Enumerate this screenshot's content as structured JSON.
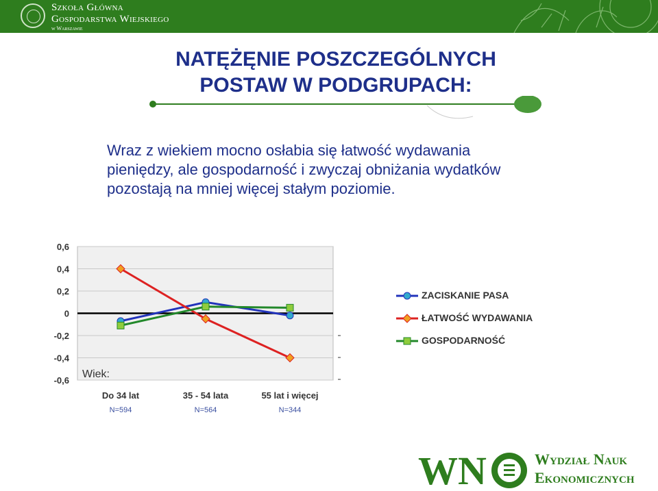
{
  "header": {
    "university_line1": "Szkoła Główna",
    "university_line2": "Gospodarstwa Wiejskiego",
    "university_line3": "w Warszawie",
    "brand_color": "#2e7d1e"
  },
  "slide": {
    "title_line1": "NATĘŻĘNIE POSZCZEGÓLNYCH",
    "title_line2": "POSTAW W PODGRUPACH:",
    "paragraph_line1": "Wraz z wiekiem mocno osłabia się łatwość wydawania",
    "paragraph_line2": "pieniędzy, ale gospodarność i zwyczaj obniżania wydatków",
    "paragraph_line3": "pozostają na mniej więcej stałym poziomie.",
    "text_color": "#1e2f8a"
  },
  "chart_data": {
    "type": "line",
    "categories": [
      "Do 34 lat",
      "35 - 54 lata",
      "55 lat i więcej"
    ],
    "category_n": [
      "N=594",
      "N=564",
      "N=344"
    ],
    "x_title": "Wiek:",
    "ylim": [
      -0.6,
      0.6
    ],
    "y_ticks": [
      "0,6",
      "0,4",
      "0,2",
      "0",
      "-0,2",
      "-0,4",
      "-0,6"
    ],
    "y_tick_values": [
      0.6,
      0.4,
      0.2,
      0,
      -0.2,
      -0.4,
      -0.6
    ],
    "grid": true,
    "legend_position": "right",
    "series": [
      {
        "name": "ZACISKANIE PASA",
        "values": [
          -0.07,
          0.1,
          -0.02
        ],
        "color": "#2233bb",
        "marker": "circle",
        "marker_color": "#33aacc"
      },
      {
        "name": "ŁATWOŚĆ WYDAWANIA",
        "values": [
          0.4,
          -0.05,
          -0.4
        ],
        "color": "#dd2222",
        "marker": "diamond",
        "marker_color": "#f0a020"
      },
      {
        "name": "GOSPODARNOŚĆ",
        "values": [
          -0.11,
          0.06,
          0.05
        ],
        "color": "#22882a",
        "marker": "square",
        "marker_color": "#8fcc3c"
      }
    ]
  },
  "footer": {
    "logo_letters": "WNE",
    "faculty_line1": "Wydział Nauk",
    "faculty_line2": "Ekonomicznych"
  }
}
